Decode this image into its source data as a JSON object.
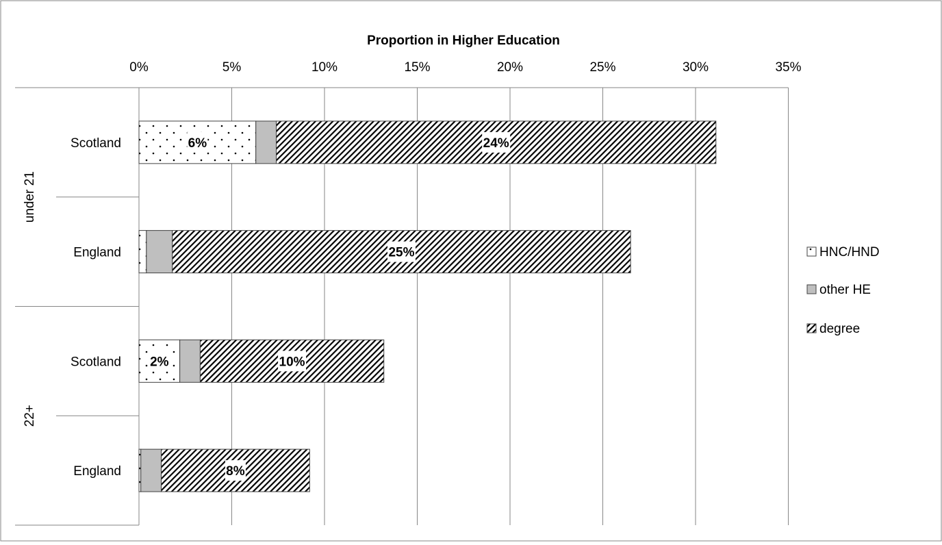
{
  "chart_data": {
    "type": "bar",
    "orientation": "horizontal",
    "stacked": true,
    "title": "Proportion in Higher Education",
    "xlim": [
      0,
      35
    ],
    "x_ticks": [
      "0%",
      "5%",
      "10%",
      "15%",
      "20%",
      "25%",
      "30%",
      "35%"
    ],
    "x_axis_position": "top",
    "grid": true,
    "legend_position": "right",
    "groups": [
      {
        "label": "under 21",
        "categories": [
          "Scotland",
          "England"
        ]
      },
      {
        "label": "22+",
        "categories": [
          "Scotland",
          "England"
        ]
      }
    ],
    "categories": [
      "Scotland",
      "England",
      "Scotland",
      "England"
    ],
    "series": [
      {
        "name": "HNC/HND",
        "values": [
          6.3,
          0.4,
          2.2,
          0.1
        ],
        "data_labels": [
          "6%",
          "",
          "2%",
          ""
        ],
        "pattern": "dots"
      },
      {
        "name": "other HE",
        "values": [
          1.1,
          1.4,
          1.1,
          1.1
        ],
        "data_labels": [
          "",
          "",
          "",
          ""
        ],
        "pattern": "solid-grey"
      },
      {
        "name": "degree",
        "values": [
          23.7,
          24.7,
          9.9,
          8.0
        ],
        "data_labels": [
          "24%",
          "25%",
          "10%",
          "8%"
        ],
        "pattern": "diagonal-hatch"
      }
    ],
    "colors": {
      "border": "#404040",
      "other_he_fill": "#bfbfbf",
      "grid": "#868686"
    }
  }
}
